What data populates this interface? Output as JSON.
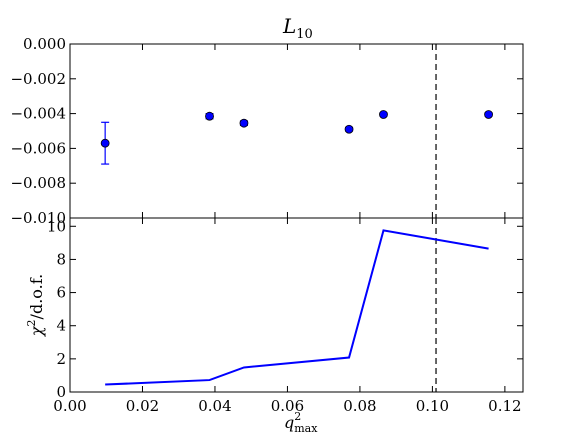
{
  "chart_data": [
    {
      "type": "scatter",
      "title": "L",
      "title_subscript": "10",
      "xlim": [
        0.0,
        0.125
      ],
      "ylim": [
        -0.01,
        0.0
      ],
      "yticks": [
        "0.000",
        "−0.002",
        "−0.004",
        "−0.006",
        "−0.008",
        "−0.010"
      ],
      "ytick_values": [
        0.0,
        -0.002,
        -0.004,
        -0.006,
        -0.008,
        -0.01
      ],
      "x": [
        0.0097,
        0.0385,
        0.048,
        0.077,
        0.0865,
        0.1155
      ],
      "y": [
        -0.0057,
        -0.00415,
        -0.00455,
        -0.0049,
        -0.00405,
        -0.00405
      ],
      "yerr": [
        0.0012,
        0.00015,
        0.00013,
        0.0001,
        0.0001,
        0.0001
      ],
      "marker_color": "#0000ff",
      "vline_x": 0.101,
      "grid": false
    },
    {
      "type": "line",
      "ylabel": "χ²/d.o.f.",
      "xlabel": "q²max",
      "xlim": [
        0.0,
        0.125
      ],
      "ylim": [
        0,
        10.5
      ],
      "xticks": [
        "0.00",
        "0.02",
        "0.04",
        "0.06",
        "0.08",
        "0.10",
        "0.12"
      ],
      "xtick_values": [
        0.0,
        0.02,
        0.04,
        0.06,
        0.08,
        0.1,
        0.12
      ],
      "yticks": [
        "0",
        "2",
        "4",
        "6",
        "8",
        "10"
      ],
      "ytick_values": [
        0,
        2,
        4,
        6,
        8,
        10
      ],
      "x": [
        0.0097,
        0.0385,
        0.048,
        0.077,
        0.0865,
        0.1155
      ],
      "y": [
        0.45,
        0.72,
        1.48,
        2.08,
        9.75,
        8.65
      ],
      "line_color": "#0000ff",
      "vline_x": 0.101,
      "grid": false
    }
  ],
  "labels": {
    "title_main": "L",
    "title_sub": "10",
    "ylabel_main": "χ",
    "ylabel_sup": "2",
    "ylabel_rest": "/d.o.f.",
    "xlabel_main": "q",
    "xlabel_sup": "2",
    "xlabel_sub": "max"
  }
}
